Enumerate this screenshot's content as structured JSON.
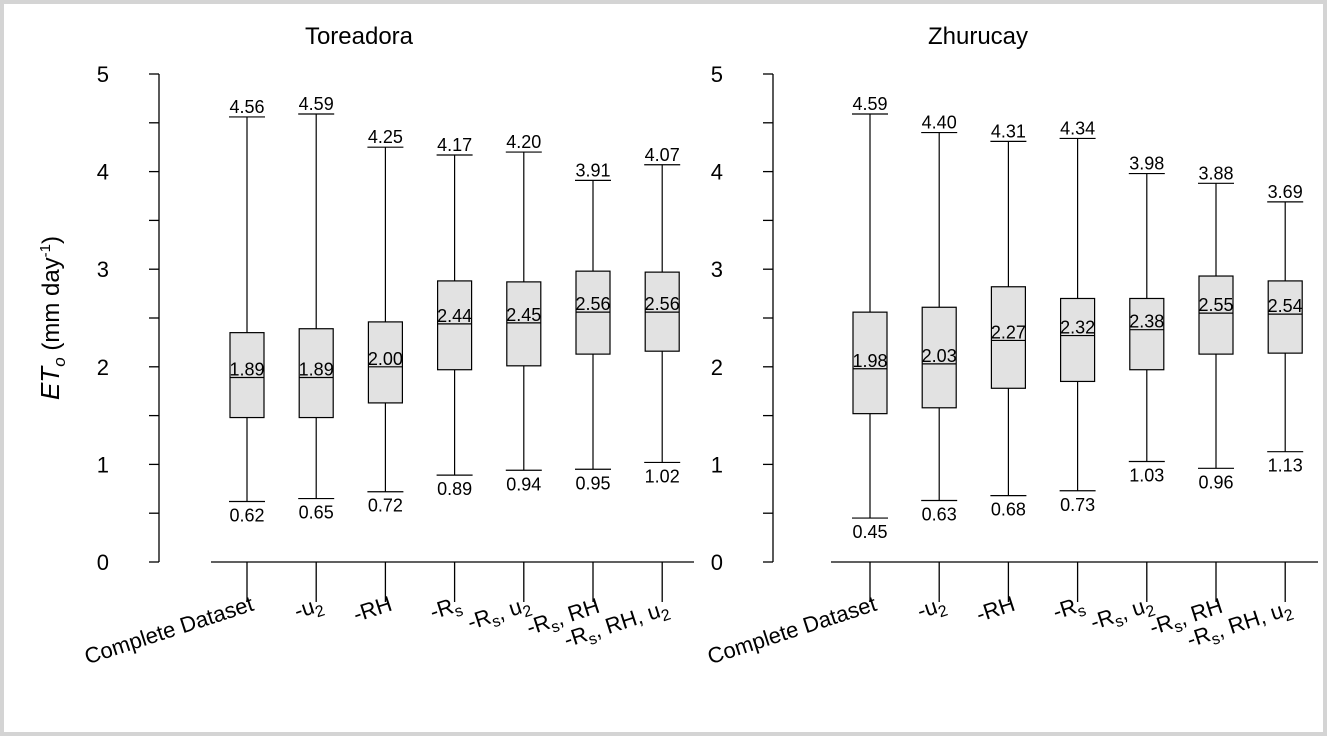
{
  "chart_data": {
    "type": "box",
    "ylabel_main": "ET",
    "ylabel_sub": "o",
    "ylabel_rest": " (mm day",
    "ylabel_sup": "-1",
    "ylabel_close": ")",
    "ylim": [
      0,
      5
    ],
    "yticks": [
      "0",
      "1",
      "2",
      "3",
      "4",
      "5"
    ],
    "categories": [
      {
        "label": "Complete Dataset"
      },
      {
        "label": "-u",
        "sub": "2"
      },
      {
        "label": "-RH"
      },
      {
        "label": "-R",
        "sub": "s"
      },
      {
        "label": "-R",
        "sub": "s",
        "rest": ", u",
        "sub2": "2"
      },
      {
        "label": "-R",
        "sub": "s",
        "rest": ", RH"
      },
      {
        "label": "-R",
        "sub": "s",
        "rest": ", RH, u",
        "sub2": "2"
      }
    ],
    "panels": [
      {
        "title": "Toreadora",
        "boxes": [
          {
            "max": 4.56,
            "q3": 2.35,
            "median": 1.89,
            "q1": 1.48,
            "min": 0.62,
            "max_label": "4.56",
            "median_label": "1.89",
            "min_label": "0.62"
          },
          {
            "max": 4.59,
            "q3": 2.39,
            "median": 1.89,
            "q1": 1.48,
            "min": 0.65,
            "max_label": "4.59",
            "median_label": "1.89",
            "min_label": "0.65"
          },
          {
            "max": 4.25,
            "q3": 2.46,
            "median": 2.0,
            "q1": 1.63,
            "min": 0.72,
            "max_label": "4.25",
            "median_label": "2.00",
            "min_label": "0.72"
          },
          {
            "max": 4.17,
            "q3": 2.88,
            "median": 2.44,
            "q1": 1.97,
            "min": 0.89,
            "max_label": "4.17",
            "median_label": "2.44",
            "min_label": "0.89"
          },
          {
            "max": 4.2,
            "q3": 2.87,
            "median": 2.45,
            "q1": 2.01,
            "min": 0.94,
            "max_label": "4.20",
            "median_label": "2.45",
            "min_label": "0.94"
          },
          {
            "max": 3.91,
            "q3": 2.98,
            "median": 2.56,
            "q1": 2.13,
            "min": 0.95,
            "max_label": "3.91",
            "median_label": "2.56",
            "min_label": "0.95"
          },
          {
            "max": 4.07,
            "q3": 2.97,
            "median": 2.56,
            "q1": 2.16,
            "min": 1.02,
            "max_label": "4.07",
            "median_label": "2.56",
            "min_label": "1.02"
          }
        ]
      },
      {
        "title": "Zhurucay",
        "boxes": [
          {
            "max": 4.59,
            "q3": 2.56,
            "median": 1.98,
            "q1": 1.52,
            "min": 0.45,
            "max_label": "4.59",
            "median_label": "1.98",
            "min_label": "0.45"
          },
          {
            "max": 4.4,
            "q3": 2.61,
            "median": 2.03,
            "q1": 1.58,
            "min": 0.63,
            "max_label": "4.40",
            "median_label": "2.03",
            "min_label": "0.63"
          },
          {
            "max": 4.31,
            "q3": 2.82,
            "median": 2.27,
            "q1": 1.78,
            "min": 0.68,
            "max_label": "4.31",
            "median_label": "2.27",
            "min_label": "0.68"
          },
          {
            "max": 4.34,
            "q3": 2.7,
            "median": 2.32,
            "q1": 1.85,
            "min": 0.73,
            "max_label": "4.34",
            "median_label": "2.32",
            "min_label": "0.73"
          },
          {
            "max": 3.98,
            "q3": 2.7,
            "median": 2.38,
            "q1": 1.97,
            "min": 1.03,
            "max_label": "3.98",
            "median_label": "2.38",
            "min_label": "1.03"
          },
          {
            "max": 3.88,
            "q3": 2.93,
            "median": 2.55,
            "q1": 2.13,
            "min": 0.96,
            "max_label": "3.88",
            "median_label": "2.55",
            "min_label": "0.96"
          },
          {
            "max": 3.69,
            "q3": 2.88,
            "median": 2.54,
            "q1": 2.14,
            "min": 1.13,
            "max_label": "3.69",
            "median_label": "2.54",
            "min_label": "1.13"
          }
        ]
      }
    ]
  }
}
